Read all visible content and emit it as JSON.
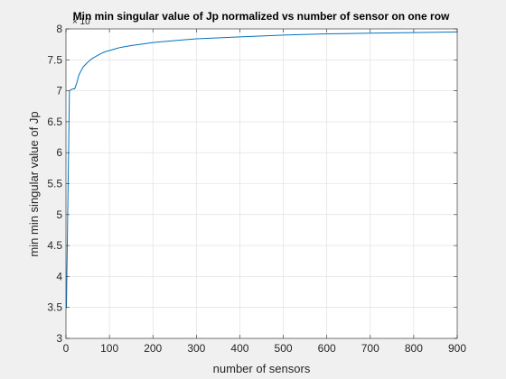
{
  "chart_data": {
    "type": "line",
    "title": "Min min singular value of Jp normalized vs number of sensor on one row",
    "xlabel": "number of sensors",
    "ylabel": "min min singular value of Jp",
    "y_exponent_label": "× 10",
    "x": [
      1,
      8,
      12,
      16,
      20,
      25,
      30,
      40,
      50,
      60,
      70,
      80,
      90,
      100,
      125,
      150,
      200,
      250,
      300,
      400,
      500,
      600,
      700,
      800,
      900
    ],
    "y": [
      3.49,
      7.0,
      7.02,
      7.03,
      7.03,
      7.13,
      7.26,
      7.39,
      7.46,
      7.52,
      7.56,
      7.6,
      7.63,
      7.65,
      7.7,
      7.73,
      7.78,
      7.81,
      7.84,
      7.87,
      7.9,
      7.92,
      7.93,
      7.94,
      7.95
    ],
    "xlim": [
      0,
      900
    ],
    "ylim": [
      3,
      8
    ],
    "xticks": [
      0,
      100,
      200,
      300,
      400,
      500,
      600,
      700,
      800,
      900
    ],
    "yticks": [
      3,
      3.5,
      4,
      4.5,
      5,
      5.5,
      6,
      6.5,
      7,
      7.5,
      8
    ],
    "xtick_labels": [
      "0",
      "100",
      "200",
      "300",
      "400",
      "500",
      "600",
      "700",
      "800",
      "900"
    ],
    "ytick_labels": [
      "3",
      "3.5",
      "4",
      "4.5",
      "5",
      "5.5",
      "6",
      "6.5",
      "7",
      "7.5",
      "8"
    ],
    "grid": true,
    "line_color": "#0072BD",
    "axes_bg": "#ffffff",
    "figure_bg": "#f0f0f0"
  }
}
